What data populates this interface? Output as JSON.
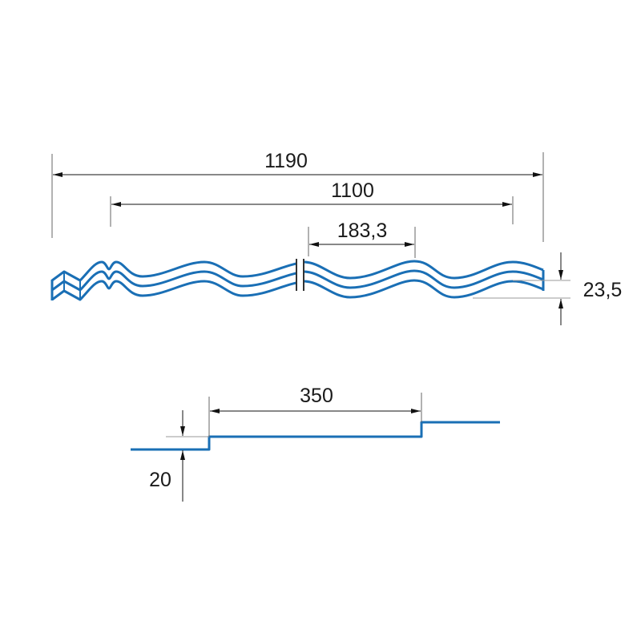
{
  "colors": {
    "profile": "#1a6fb5",
    "dimension": "#111111"
  },
  "cross_section": {
    "overall_width": "1190",
    "effective_width": "1100",
    "wave_pitch": "183,3",
    "wave_height": "23,5"
  },
  "side_profile": {
    "step_length": "350",
    "step_height": "20"
  }
}
